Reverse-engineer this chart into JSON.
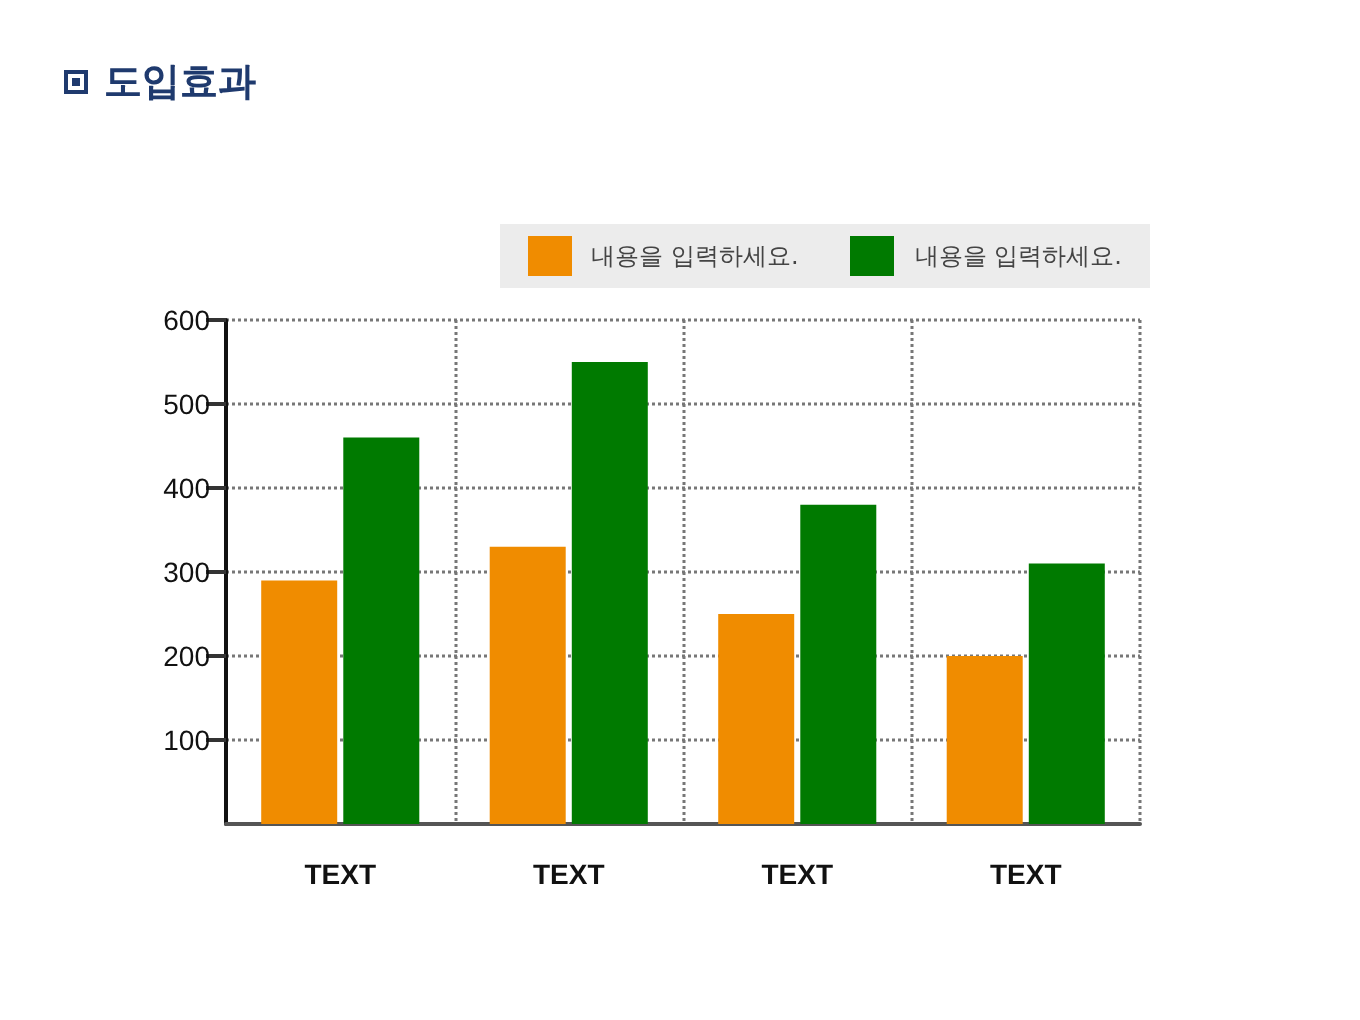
{
  "chart_data": {
    "type": "bar",
    "title": "도입효과",
    "categories": [
      "TEXT",
      "TEXT",
      "TEXT",
      "TEXT"
    ],
    "series": [
      {
        "name": "내용을 입력하세요.",
        "color": "#f08c00",
        "values": [
          290,
          330,
          250,
          200
        ]
      },
      {
        "name": "내용을 입력하세요.",
        "color": "#007a00",
        "values": [
          460,
          550,
          380,
          310
        ]
      }
    ],
    "ylim": [
      0,
      600
    ],
    "yticks": [
      100,
      200,
      300,
      400,
      500,
      600
    ],
    "grid": true,
    "legend": "top right"
  }
}
